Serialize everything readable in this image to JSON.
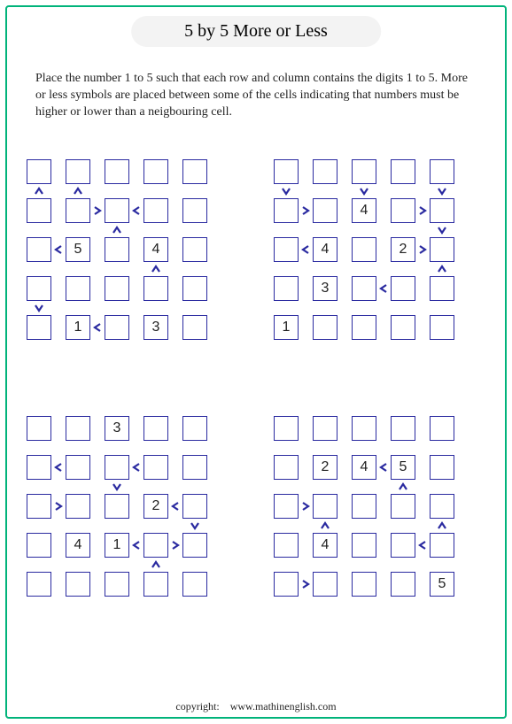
{
  "title": "5 by 5 More or Less",
  "instructions": "Place the number 1 to 5 such that each row and column contains the digits 1 to 5. More or less symbols are placed between some of the cells indicating that numbers must be higher or lower than a neigbouring cell.",
  "footer_label": "copyright:",
  "footer_site": "www.mathinenglish.com",
  "layout": {
    "cell_size": 28,
    "cell_gap": 16,
    "border_color": "#2a2aa0",
    "page_border_color": "#00b37a",
    "symbol_color": "#2a2aa0"
  },
  "puzzles": [
    {
      "values": {
        "2,1": "5",
        "2,3": "4",
        "4,1": "1",
        "4,3": "3"
      },
      "h_syms": {
        "1,1": ">",
        "1,2": "<",
        "2,0": "<",
        "4,1": "<"
      },
      "v_syms": {
        "0,0": "^",
        "0,1": "^",
        "1,2": "^",
        "2,3": "^",
        "3,0": "v"
      }
    },
    {
      "values": {
        "1,2": "4",
        "2,1": "4",
        "2,3": "2",
        "3,1": "3",
        "4,0": "1"
      },
      "h_syms": {
        "1,0": ">",
        "1,3": ">",
        "2,0": "<",
        "2,3": ">",
        "3,2": "<"
      },
      "v_syms": {
        "0,0": "v",
        "0,2": "v",
        "0,4": "v",
        "1,4": "v",
        "2,4": "^"
      }
    },
    {
      "values": {
        "0,2": "3",
        "2,3": "2",
        "3,1": "4",
        "3,2": "1"
      },
      "h_syms": {
        "1,0": "<",
        "1,2": "<",
        "2,0": ">",
        "2,3": "<",
        "3,2": "<",
        "3,3": ">"
      },
      "v_syms": {
        "1,2": "v",
        "2,4": "v",
        "3,3": "^"
      }
    },
    {
      "values": {
        "1,1": "2",
        "1,2": "4",
        "1,3": "5",
        "3,1": "4",
        "4,4": "5"
      },
      "h_syms": {
        "1,2": "<",
        "2,0": ">",
        "3,3": "<",
        "4,0": ">"
      },
      "v_syms": {
        "1,3": "^",
        "2,1": "^",
        "2,4": "^"
      }
    }
  ]
}
